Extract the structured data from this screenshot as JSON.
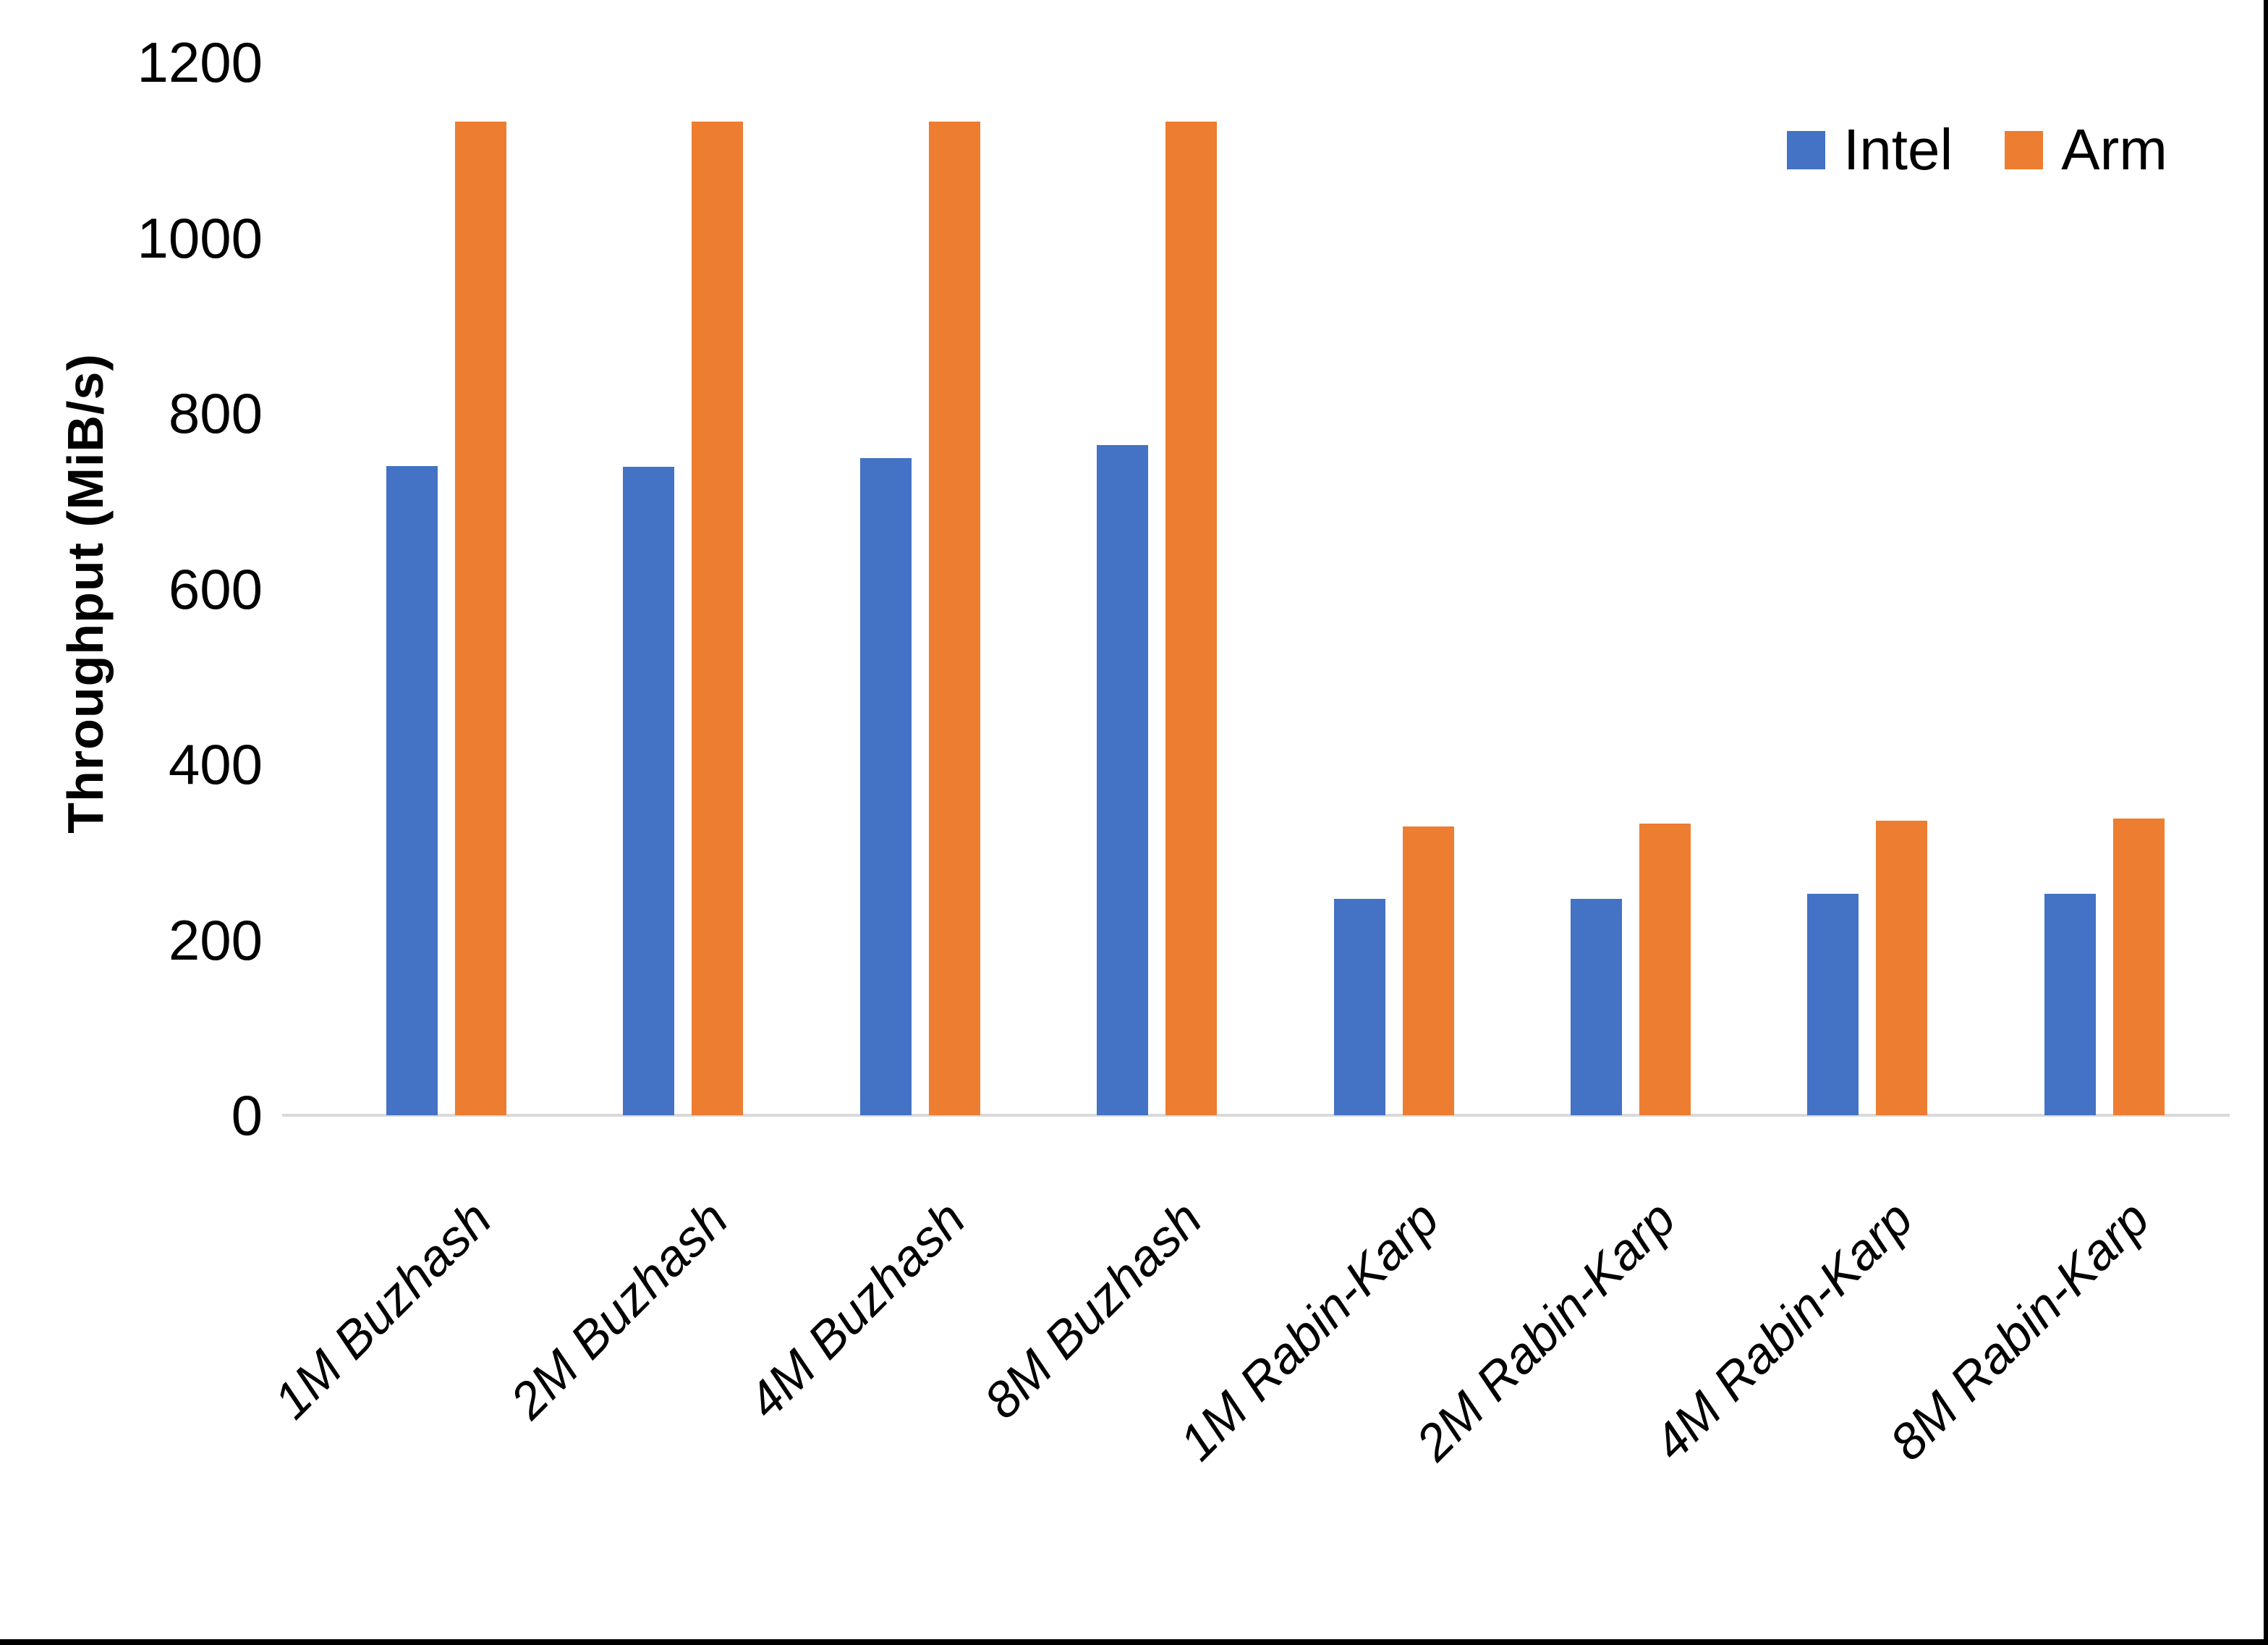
{
  "chart_data": {
    "type": "bar",
    "title": "",
    "ylabel": "Throughput (MiB/s)",
    "xlabel": "",
    "ylim": [
      0,
      1200
    ],
    "yticks": [
      0,
      200,
      400,
      600,
      800,
      1000,
      1200
    ],
    "grid": false,
    "legend_position": "top-right",
    "categories": [
      "1M Buzhash",
      "2M Buzhash",
      "4M Buzhash",
      "8M Buzhash",
      "1M Rabin-Karp",
      "2M Rabin-Karp",
      "4M Rabin-Karp",
      "8M Rabin-Karp"
    ],
    "series": [
      {
        "name": "Intel",
        "color": "#4472C4",
        "values": [
          740,
          739,
          749,
          764,
          247,
          247,
          252,
          252
        ]
      },
      {
        "name": "Arm",
        "color": "#ED7D31",
        "values": [
          1132,
          1132,
          1132,
          1132,
          329,
          332,
          336,
          338
        ]
      }
    ]
  },
  "colors": {
    "background": "#FFFFFF",
    "axis_line": "#D9D9D9",
    "text": "#000000",
    "screenshot_border": "#000000"
  }
}
